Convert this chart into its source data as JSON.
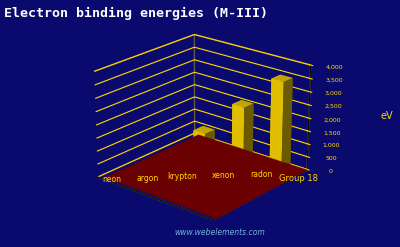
{
  "title": "Electron binding energies (M-III)",
  "title_color": "#ffffff",
  "title_fontsize": 9.5,
  "background_color": "#0a0a6e",
  "elements": [
    "neon",
    "argon",
    "krypton",
    "xenon",
    "radon"
  ],
  "values": [
    21.7,
    250.6,
    1678.4,
    2625.0,
    3538.0
  ],
  "ylabel": "eV",
  "xlabel": "Group 18",
  "yticks": [
    0,
    500,
    1000,
    1500,
    2000,
    2500,
    3000,
    3500,
    4000
  ],
  "ytick_labels": [
    "0",
    "500",
    "1,000",
    "1,500",
    "2,000",
    "2,500",
    "3,000",
    "3,500",
    "4,000"
  ],
  "ylim": [
    0,
    4000
  ],
  "bar_color": "#FFD700",
  "base_color": "#8B0000",
  "grid_color": "#FFD700",
  "label_color": "#FFD700",
  "watermark": "www.webelements.com",
  "elev": 22,
  "azim": -50
}
